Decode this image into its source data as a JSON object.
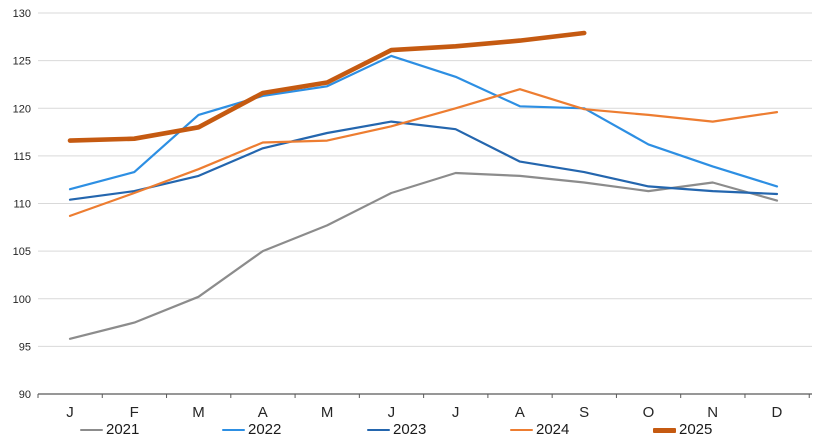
{
  "chart_data": {
    "type": "line",
    "title": "",
    "categories": [
      "J",
      "F",
      "M",
      "A",
      "M",
      "J",
      "J",
      "A",
      "S",
      "O",
      "N",
      "D"
    ],
    "y_ticks": [
      90,
      95,
      100,
      105,
      110,
      115,
      120,
      125,
      130
    ],
    "y_axis": {
      "min": 90,
      "max": 130,
      "step": 5
    },
    "grid": true,
    "grid_color": "#d9d9d9",
    "axis_color": "#595959",
    "tick_label_color": "#262626",
    "legend_position": "bottom",
    "series": [
      {
        "name": "2021",
        "color": "#8c8c8c",
        "thick": false,
        "values": [
          95.8,
          97.5,
          100.2,
          105.0,
          107.7,
          111.1,
          113.2,
          112.9,
          112.2,
          111.3,
          112.2,
          110.3
        ]
      },
      {
        "name": "2022",
        "color": "#2d8fe3",
        "thick": false,
        "values": [
          111.5,
          113.3,
          119.3,
          121.3,
          122.3,
          125.5,
          123.3,
          120.2,
          120.0,
          116.2,
          113.9,
          111.8
        ]
      },
      {
        "name": "2023",
        "color": "#2466ae",
        "thick": false,
        "values": [
          110.4,
          111.3,
          112.9,
          115.8,
          117.4,
          118.6,
          117.8,
          114.4,
          113.3,
          111.8,
          111.3,
          111.0
        ]
      },
      {
        "name": "2024",
        "color": "#ed7d31",
        "thick": false,
        "values": [
          108.7,
          111.1,
          113.6,
          116.4,
          116.6,
          118.1,
          120.0,
          122.0,
          119.9,
          119.3,
          118.6,
          119.6
        ]
      },
      {
        "name": "2025",
        "color": "#c55a11",
        "thick": true,
        "values": [
          116.6,
          116.8,
          118.0,
          121.6,
          122.7,
          126.1,
          126.5,
          127.1,
          127.9,
          null,
          null,
          null
        ]
      }
    ]
  }
}
